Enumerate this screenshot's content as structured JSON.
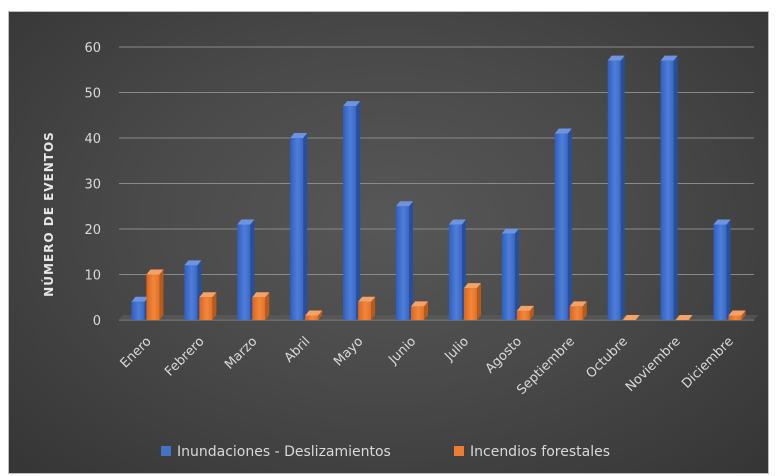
{
  "chart_data": {
    "type": "bar",
    "title": "",
    "xlabel": "",
    "ylabel": "NÚMERO DE EVENTOS",
    "ylim": [
      0,
      60
    ],
    "yticks": [
      0,
      10,
      20,
      30,
      40,
      50,
      60
    ],
    "grid": true,
    "legend_position": "bottom",
    "categories": [
      "Enero",
      "Febrero",
      "Marzo",
      "Abril",
      "Mayo",
      "Junio",
      "Julio",
      "Agosto",
      "Septiembre",
      "Octubre",
      "Noviembre",
      "Diciembre"
    ],
    "series": [
      {
        "name": "Inundaciones - Deslizamientos",
        "color": "#4472c4",
        "values": [
          4,
          12,
          21,
          40,
          47,
          25,
          21,
          19,
          41,
          57,
          57,
          21
        ]
      },
      {
        "name": "Incendios forestales",
        "color": "#ed7d31",
        "values": [
          10,
          5,
          5,
          1,
          4,
          3,
          7,
          2,
          3,
          0,
          0,
          1
        ]
      }
    ]
  }
}
